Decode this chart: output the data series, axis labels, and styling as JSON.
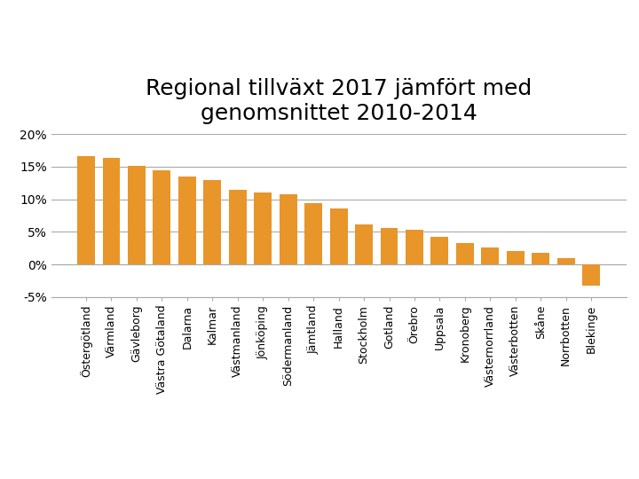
{
  "title": "Regional tillväxt 2017 jämfört med\ngenomsnittet 2010-2014",
  "categories": [
    "Östergötland",
    "Värmland",
    "Gävleborg",
    "Västra Götaland",
    "Dalarna",
    "Kalmar",
    "Västmanland",
    "Jönköping",
    "Södermanland",
    "Jämtland",
    "Halland",
    "Stockholm",
    "Gotland",
    "Örebro",
    "Uppsala",
    "Kronoberg",
    "Västernorrland",
    "Västerbotten",
    "Skåne",
    "Norrbotten",
    "Blekinge"
  ],
  "values": [
    0.166,
    0.163,
    0.151,
    0.144,
    0.135,
    0.13,
    0.115,
    0.111,
    0.107,
    0.094,
    0.086,
    0.061,
    0.056,
    0.053,
    0.043,
    0.033,
    0.026,
    0.021,
    0.018,
    0.01,
    -0.032
  ],
  "bar_color": "#E8952A",
  "ylim": [
    -0.05,
    0.2
  ],
  "yticks": [
    -0.05,
    0.0,
    0.05,
    0.1,
    0.15,
    0.2
  ],
  "ytick_labels": [
    "-5%",
    "0%",
    "5%",
    "10%",
    "15%",
    "20%"
  ],
  "title_fontsize": 18,
  "tick_fontsize": 10,
  "label_fontsize": 9,
  "background_color": "#ffffff",
  "grid_color": "#aaaaaa"
}
